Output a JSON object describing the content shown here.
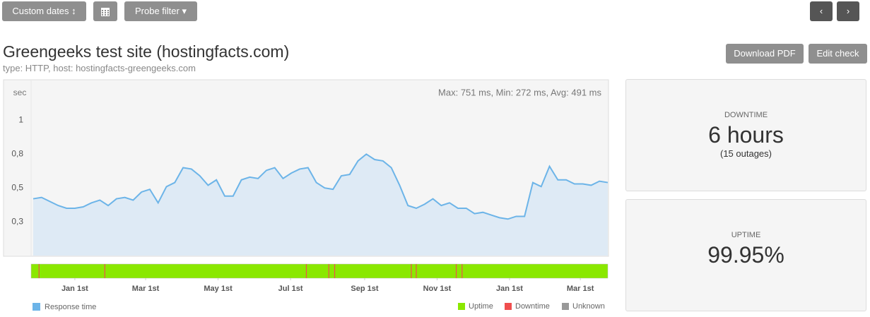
{
  "toolbar": {
    "date_button": "Custom dates",
    "probe_button": "Probe filter"
  },
  "header": {
    "title": "Greengeeks test site (hostingfacts.com)",
    "subtitle": "type: HTTP, host: hostingfacts-greengeeks.com",
    "buttons": [
      "Download PDF",
      "Edit check"
    ]
  },
  "chart_data": {
    "type": "line",
    "y_unit": "sec",
    "annotation": "Max: 751 ms, Min: 272 ms, Avg: 491 ms",
    "xlim": [
      0,
      69
    ],
    "xticks": [
      {
        "value": 5,
        "label": "Jan 1st"
      },
      {
        "value": 13.5,
        "label": "Mar 1st"
      },
      {
        "value": 22.2,
        "label": "May 1st"
      },
      {
        "value": 30.9,
        "label": "Jul 1st"
      },
      {
        "value": 39.8,
        "label": "Sep 1st"
      },
      {
        "value": 48.5,
        "label": "Nov 1st"
      },
      {
        "value": 57.2,
        "label": "Jan 1st"
      },
      {
        "value": 65.7,
        "label": "Mar 1st"
      }
    ],
    "ylim": [
      0,
      1.3
    ],
    "yticks": [
      {
        "value": 0.25,
        "label": "0,3"
      },
      {
        "value": 0.5,
        "label": "0,5"
      },
      {
        "value": 0.75,
        "label": "0,8"
      },
      1
    ],
    "series": [
      {
        "name": "Response time",
        "color": "#6cb4e8",
        "values": [
          0.42,
          0.43,
          0.4,
          0.37,
          0.35,
          0.35,
          0.36,
          0.39,
          0.41,
          0.37,
          0.42,
          0.43,
          0.41,
          0.47,
          0.49,
          0.39,
          0.51,
          0.54,
          0.65,
          0.64,
          0.59,
          0.52,
          0.56,
          0.44,
          0.44,
          0.56,
          0.58,
          0.57,
          0.63,
          0.65,
          0.57,
          0.61,
          0.64,
          0.65,
          0.54,
          0.5,
          0.49,
          0.59,
          0.6,
          0.7,
          0.75,
          0.71,
          0.7,
          0.65,
          0.52,
          0.37,
          0.35,
          0.38,
          0.42,
          0.37,
          0.39,
          0.35,
          0.35,
          0.31,
          0.32,
          0.3,
          0.28,
          0.27,
          0.29,
          0.29,
          0.54,
          0.51,
          0.66,
          0.56,
          0.56,
          0.53,
          0.53,
          0.52,
          0.55,
          0.54
        ]
      }
    ],
    "status_bar": {
      "outages": [
        0.7,
        8.6,
        32.8,
        35.5,
        36.2,
        45.4,
        46.0,
        50.8,
        51.5
      ],
      "legend": [
        {
          "name": "Uptime",
          "color": "#8ae800"
        },
        {
          "name": "Downtime",
          "color": "#f04e4e"
        },
        {
          "name": "Unknown",
          "color": "#999999"
        }
      ]
    }
  },
  "stats": {
    "downtime": {
      "label": "DOWNTIME",
      "value": "6 hours",
      "detail": "(15 outages)"
    },
    "uptime": {
      "label": "UPTIME",
      "value": "99.95%"
    }
  }
}
